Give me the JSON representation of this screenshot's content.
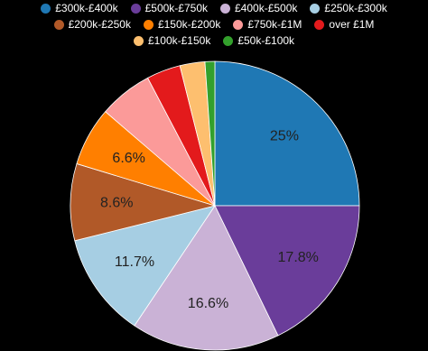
{
  "chart_data": {
    "type": "pie",
    "categories": [
      "£300k-£400k",
      "£500k-£750k",
      "£400k-£500k",
      "£250k-£300k",
      "£200k-£250k",
      "£150k-£200k",
      "£750k-£1M",
      "over £1M",
      "£100k-£150k",
      "£50k-£100k"
    ],
    "values": [
      25,
      17.8,
      16.6,
      11.7,
      8.6,
      6.6,
      6.0,
      3.8,
      2.8,
      1.1
    ],
    "value_labels": [
      "25%",
      "17.8%",
      "16.6%",
      "11.7%",
      "8.6%",
      "6.6%",
      null,
      null,
      null,
      null
    ],
    "colors": [
      "#1f78b4",
      "#6a3d9a",
      "#cab2d6",
      "#a6cee3",
      "#b15928",
      "#ff7f00",
      "#fb9a99",
      "#e31a1c",
      "#fdbf6f",
      "#33a02c"
    ],
    "legend": "top"
  }
}
